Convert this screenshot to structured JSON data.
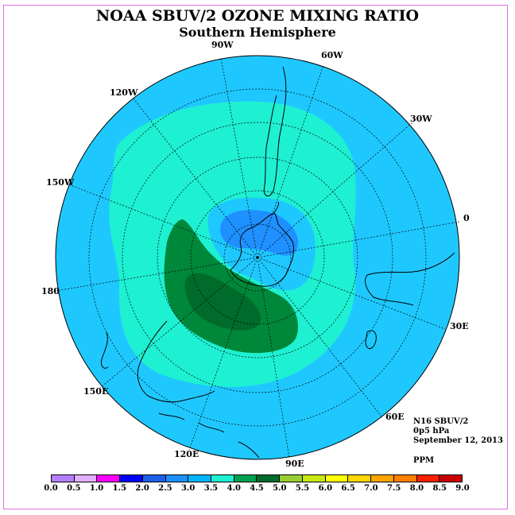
{
  "title": "NOAA SBUV/2 OZONE MIXING RATIO",
  "subtitle": "Southern Hemisphere",
  "longitude_labels": [
    {
      "id": "lon-90w",
      "text": "90W"
    },
    {
      "id": "lon-60w",
      "text": "60W"
    },
    {
      "id": "lon-30w",
      "text": "30W"
    },
    {
      "id": "lon-0",
      "text": "0"
    },
    {
      "id": "lon-30e",
      "text": "30E"
    },
    {
      "id": "lon-60e",
      "text": "60E"
    },
    {
      "id": "lon-90e",
      "text": "90E"
    },
    {
      "id": "lon-120e",
      "text": "120E"
    },
    {
      "id": "lon-150e",
      "text": "150E"
    },
    {
      "id": "lon-180",
      "text": "180"
    },
    {
      "id": "lon-150w",
      "text": "150W"
    },
    {
      "id": "lon-120w",
      "text": "120W"
    }
  ],
  "info": {
    "instrument": "N16 SBUV/2",
    "level": "0p5 hPa",
    "date": "September 12, 2013",
    "units": "PPM"
  },
  "colorbar": {
    "ticks": [
      "0.0",
      "0.5",
      "1.0",
      "1.5",
      "2.0",
      "2.5",
      "3.0",
      "3.5",
      "4.0",
      "4.5",
      "5.0",
      "5.5",
      "6.0",
      "6.5",
      "7.0",
      "7.5",
      "8.0",
      "8.5",
      "9.0"
    ],
    "colors": [
      "#b380ff",
      "#e0b0ff",
      "#ff00ff",
      "#0000ff",
      "#1e5ee8",
      "#1e90ff",
      "#00b4ff",
      "#1ef0d2",
      "#00a050",
      "#006b2a",
      "#9acd32",
      "#c8e614",
      "#ffff00",
      "#ffd700",
      "#ffa500",
      "#ff7f00",
      "#ff2000",
      "#c80000",
      "#8b5a2b"
    ]
  },
  "chart_data": {
    "type": "heatmap",
    "title": "NOAA SBUV/2 OZONE MIXING RATIO",
    "subtitle": "Southern Hemisphere",
    "projection": "polar stereographic, south pole centered",
    "units": "PPM",
    "pressure_level": "0p5 hPa",
    "date": "September 12, 2013",
    "regions": [
      {
        "name": "outer mid-latitudes",
        "range_ppm": [
          3.0,
          3.5
        ]
      },
      {
        "name": "high-latitude ring",
        "range_ppm": [
          3.5,
          4.0
        ]
      },
      {
        "name": "polar core over Antarctica",
        "range_ppm": [
          2.5,
          3.0
        ]
      },
      {
        "name": "polar edge",
        "range_ppm": [
          3.0,
          3.5
        ]
      },
      {
        "name": "maximum band toward Australia",
        "range_ppm": [
          4.0,
          4.5
        ]
      },
      {
        "name": "maximum core",
        "range_ppm": [
          4.5,
          5.0
        ]
      }
    ],
    "colorbar_min": 0.0,
    "colorbar_max": 9.0,
    "colorbar_step": 0.5
  }
}
